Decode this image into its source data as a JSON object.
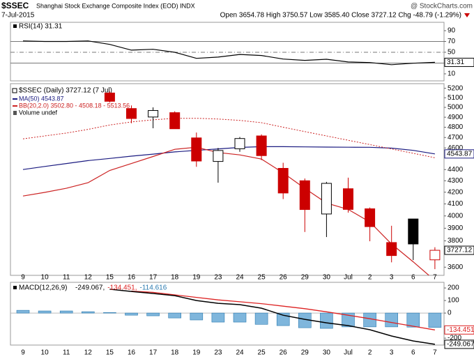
{
  "header": {
    "symbol": "$SSEC",
    "name": "Shanghai Stock Exchange Composite Index (EOD) INDX",
    "date": "7-Jul-2015",
    "quote": "Open 3654.78 High 3750.57 Low 3585.40 Close 3727.12 Chg -48.79 (-1.29%)",
    "credit": "@ StockCharts.com"
  },
  "chart_data": [
    {
      "type": "line",
      "title": "RSI(14) 31.31",
      "color": "#000000",
      "values": [
        71,
        70,
        70,
        71,
        64.5,
        54,
        55.5,
        50,
        38.7,
        41,
        46,
        44,
        37.4,
        35,
        37,
        32,
        31,
        27,
        29.7,
        31.31
      ],
      "ylim": [
        -3,
        105.5
      ],
      "yticks": [
        90,
        70,
        50,
        30,
        10
      ],
      "levels": [
        70,
        50,
        30
      ],
      "level_styles": [
        "solid",
        "dashdot",
        "solid"
      ]
    },
    {
      "type": "candlestick",
      "log": true,
      "categories": [
        "9",
        "10",
        "11",
        "12",
        "15",
        "16",
        "17",
        "18",
        "19",
        "23",
        "24",
        "25",
        "26",
        "29",
        "30",
        "Jul",
        "2",
        "3",
        "6",
        "7"
      ],
      "candles": {
        "name": "$SSEC (Daily) 3727.12 (7 Jul)",
        "up_color": "#000000",
        "down_color": "#cc0000",
        "open": [
          null,
          null,
          null,
          null,
          5150,
          4988,
          4902,
          4946,
          4696,
          4474,
          4592,
          4715,
          4411,
          4300,
          4016,
          4230,
          4059,
          3787,
          3975,
          3654.78
        ],
        "high": [
          null,
          null,
          null,
          null,
          5165,
          5020,
          5000,
          4960,
          4748,
          4600,
          4705,
          4730,
          4462,
          4320,
          4290,
          4327,
          4070,
          3920,
          3975,
          3750.57
        ],
        "low": [
          null,
          null,
          null,
          null,
          5050,
          4840,
          4790,
          4790,
          4425,
          4283,
          4564,
          4487,
          4141,
          3870,
          3830,
          4027,
          3797,
          3636,
          3653,
          3585.4
        ],
        "close": [
          null,
          null,
          null,
          null,
          5063,
          4887,
          4968,
          4785,
          4478,
          4576,
          4690,
          4528,
          4193,
          4053,
          4277,
          4054,
          3913,
          3687,
          3776,
          3727.12
        ]
      },
      "series": [
        {
          "name": "MA(50) 4543.87",
          "color": "#1a1a80",
          "dash": false,
          "values": [
            4400,
            4428,
            4455,
            4482,
            4502,
            4523,
            4542,
            4563,
            4577,
            4591,
            4605,
            4612,
            4612,
            4610,
            4608,
            4607,
            4606,
            4598,
            4577,
            4543.87
          ]
        },
        {
          "name": "BB(20,2.0) 3502.80 - 4508.18 - 5513.56",
          "color": "#cc2222",
          "dash": false,
          "values": [
            4167,
            4198,
            4234,
            4283,
            4392,
            4455,
            4520,
            4587,
            4607,
            4557,
            4535,
            4496,
            4370,
            4233,
            4107,
            4054,
            3950,
            3776,
            3640,
            3502.8
          ]
        },
        {
          "color": "#cc2222",
          "dash": true,
          "values": [
            4687,
            4715,
            4743,
            4779,
            4822,
            4853,
            4874,
            4889,
            4889,
            4882,
            4868,
            4845,
            4800,
            4757,
            4715,
            4673,
            4632,
            4590,
            4550,
            4508.18
          ]
        }
      ],
      "annotations": [
        "Volume undef"
      ],
      "ylim": [
        3540,
        5250
      ],
      "yticks": [
        3600,
        3800,
        3900,
        4000,
        4100,
        4200,
        4300,
        4400,
        4600,
        4700,
        4800,
        4900,
        5000,
        5100,
        5200
      ]
    },
    {
      "type": "macd",
      "title": "MACD(12,26,9)",
      "legend": [
        "-249.067,",
        "-134.451,",
        "-114.616"
      ],
      "series": [
        {
          "color": "#000000",
          "values": [
            null,
            null,
            null,
            null,
            190,
            172,
            156,
            139,
            100,
            78,
            67,
            39,
            -17,
            -50,
            -78,
            -100,
            -133,
            -183,
            -222,
            -249.067
          ]
        },
        {
          "color": "#dd2222",
          "values": [
            null,
            null,
            null,
            null,
            null,
            175,
            165,
            145,
            125,
            105,
            90,
            75,
            55,
            35,
            10,
            -17,
            -45,
            -75,
            -105,
            -134.451
          ]
        },
        {
          "color": "#2a7ab0",
          "values": [
            22,
            17,
            17,
            11,
            4,
            -17,
            -22,
            -39,
            -55,
            -72,
            -72,
            -90,
            -100,
            -117,
            -122,
            -110,
            -110,
            -110,
            -112,
            -114.616
          ]
        }
      ],
      "ylim": [
        -255,
        245
      ],
      "yticks": [
        200,
        100,
        0,
        -200
      ]
    }
  ]
}
